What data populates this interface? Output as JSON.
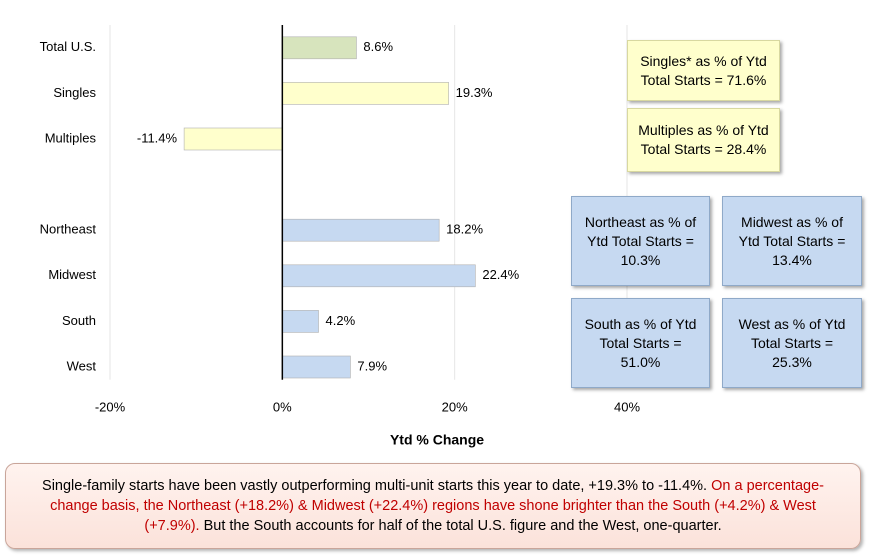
{
  "chart_data": {
    "type": "bar",
    "orientation": "horizontal",
    "categories": [
      "Total U.S.",
      "Singles",
      "Multiples",
      null,
      "Northeast",
      "Midwest",
      "South",
      "West"
    ],
    "values": [
      8.6,
      19.3,
      -11.4,
      null,
      18.2,
      22.4,
      4.2,
      7.9
    ],
    "value_labels": [
      "8.6%",
      "19.3%",
      "-11.4%",
      null,
      "18.2%",
      "22.4%",
      "4.2%",
      "7.9%"
    ],
    "colors": [
      "#d7e4bd",
      "#ffffcc",
      "#ffffcc",
      null,
      "#c6d9f1",
      "#c6d9f1",
      "#c6d9f1",
      "#c6d9f1"
    ],
    "xlim": [
      -20,
      40
    ],
    "xticks": [
      {
        "value": -20,
        "label": "-20%"
      },
      {
        "value": 0,
        "label": "0%"
      },
      {
        "value": 20,
        "label": "20%"
      },
      {
        "value": 40,
        "label": "40%"
      }
    ],
    "xlabel": "Ytd % Change",
    "grid": true,
    "annotations": [
      {
        "lines": [
          "Singles* as % of Ytd",
          "Total Starts = 71.6%"
        ],
        "color": "#ffffcc"
      },
      {
        "lines": [
          "Multiples as % of Ytd",
          "Total Starts = 28.4%"
        ],
        "color": "#ffffcc"
      },
      {
        "lines": [
          "Northeast as % of",
          "Ytd Total Starts =",
          "10.3%"
        ],
        "color": "#c6d9f1"
      },
      {
        "lines": [
          "Midwest as % of",
          "Ytd Total Starts =",
          "13.4%"
        ],
        "color": "#c6d9f1"
      },
      {
        "lines": [
          "South as % of Ytd",
          "Total Starts =",
          "51.0%"
        ],
        "color": "#c6d9f1"
      },
      {
        "lines": [
          "West as % of Ytd",
          "Total Starts =",
          "25.3%"
        ],
        "color": "#c6d9f1"
      }
    ]
  },
  "note": [
    {
      "text": "Single-family starts have been vastly outperforming multi-unit starts this year to date, +19.3% to -11.4%.",
      "color": "#000000"
    },
    {
      "text": "On a percentage-change basis, the Northeast (+18.2%) & Midwest (+22.4%) regions have shone brighter than the South (+4.2%) & West (+7.9%).",
      "color": "#c00000"
    },
    {
      "text": "But the South accounts for half of the total U.S. figure and the West, one-quarter.",
      "color": "#000000"
    }
  ]
}
